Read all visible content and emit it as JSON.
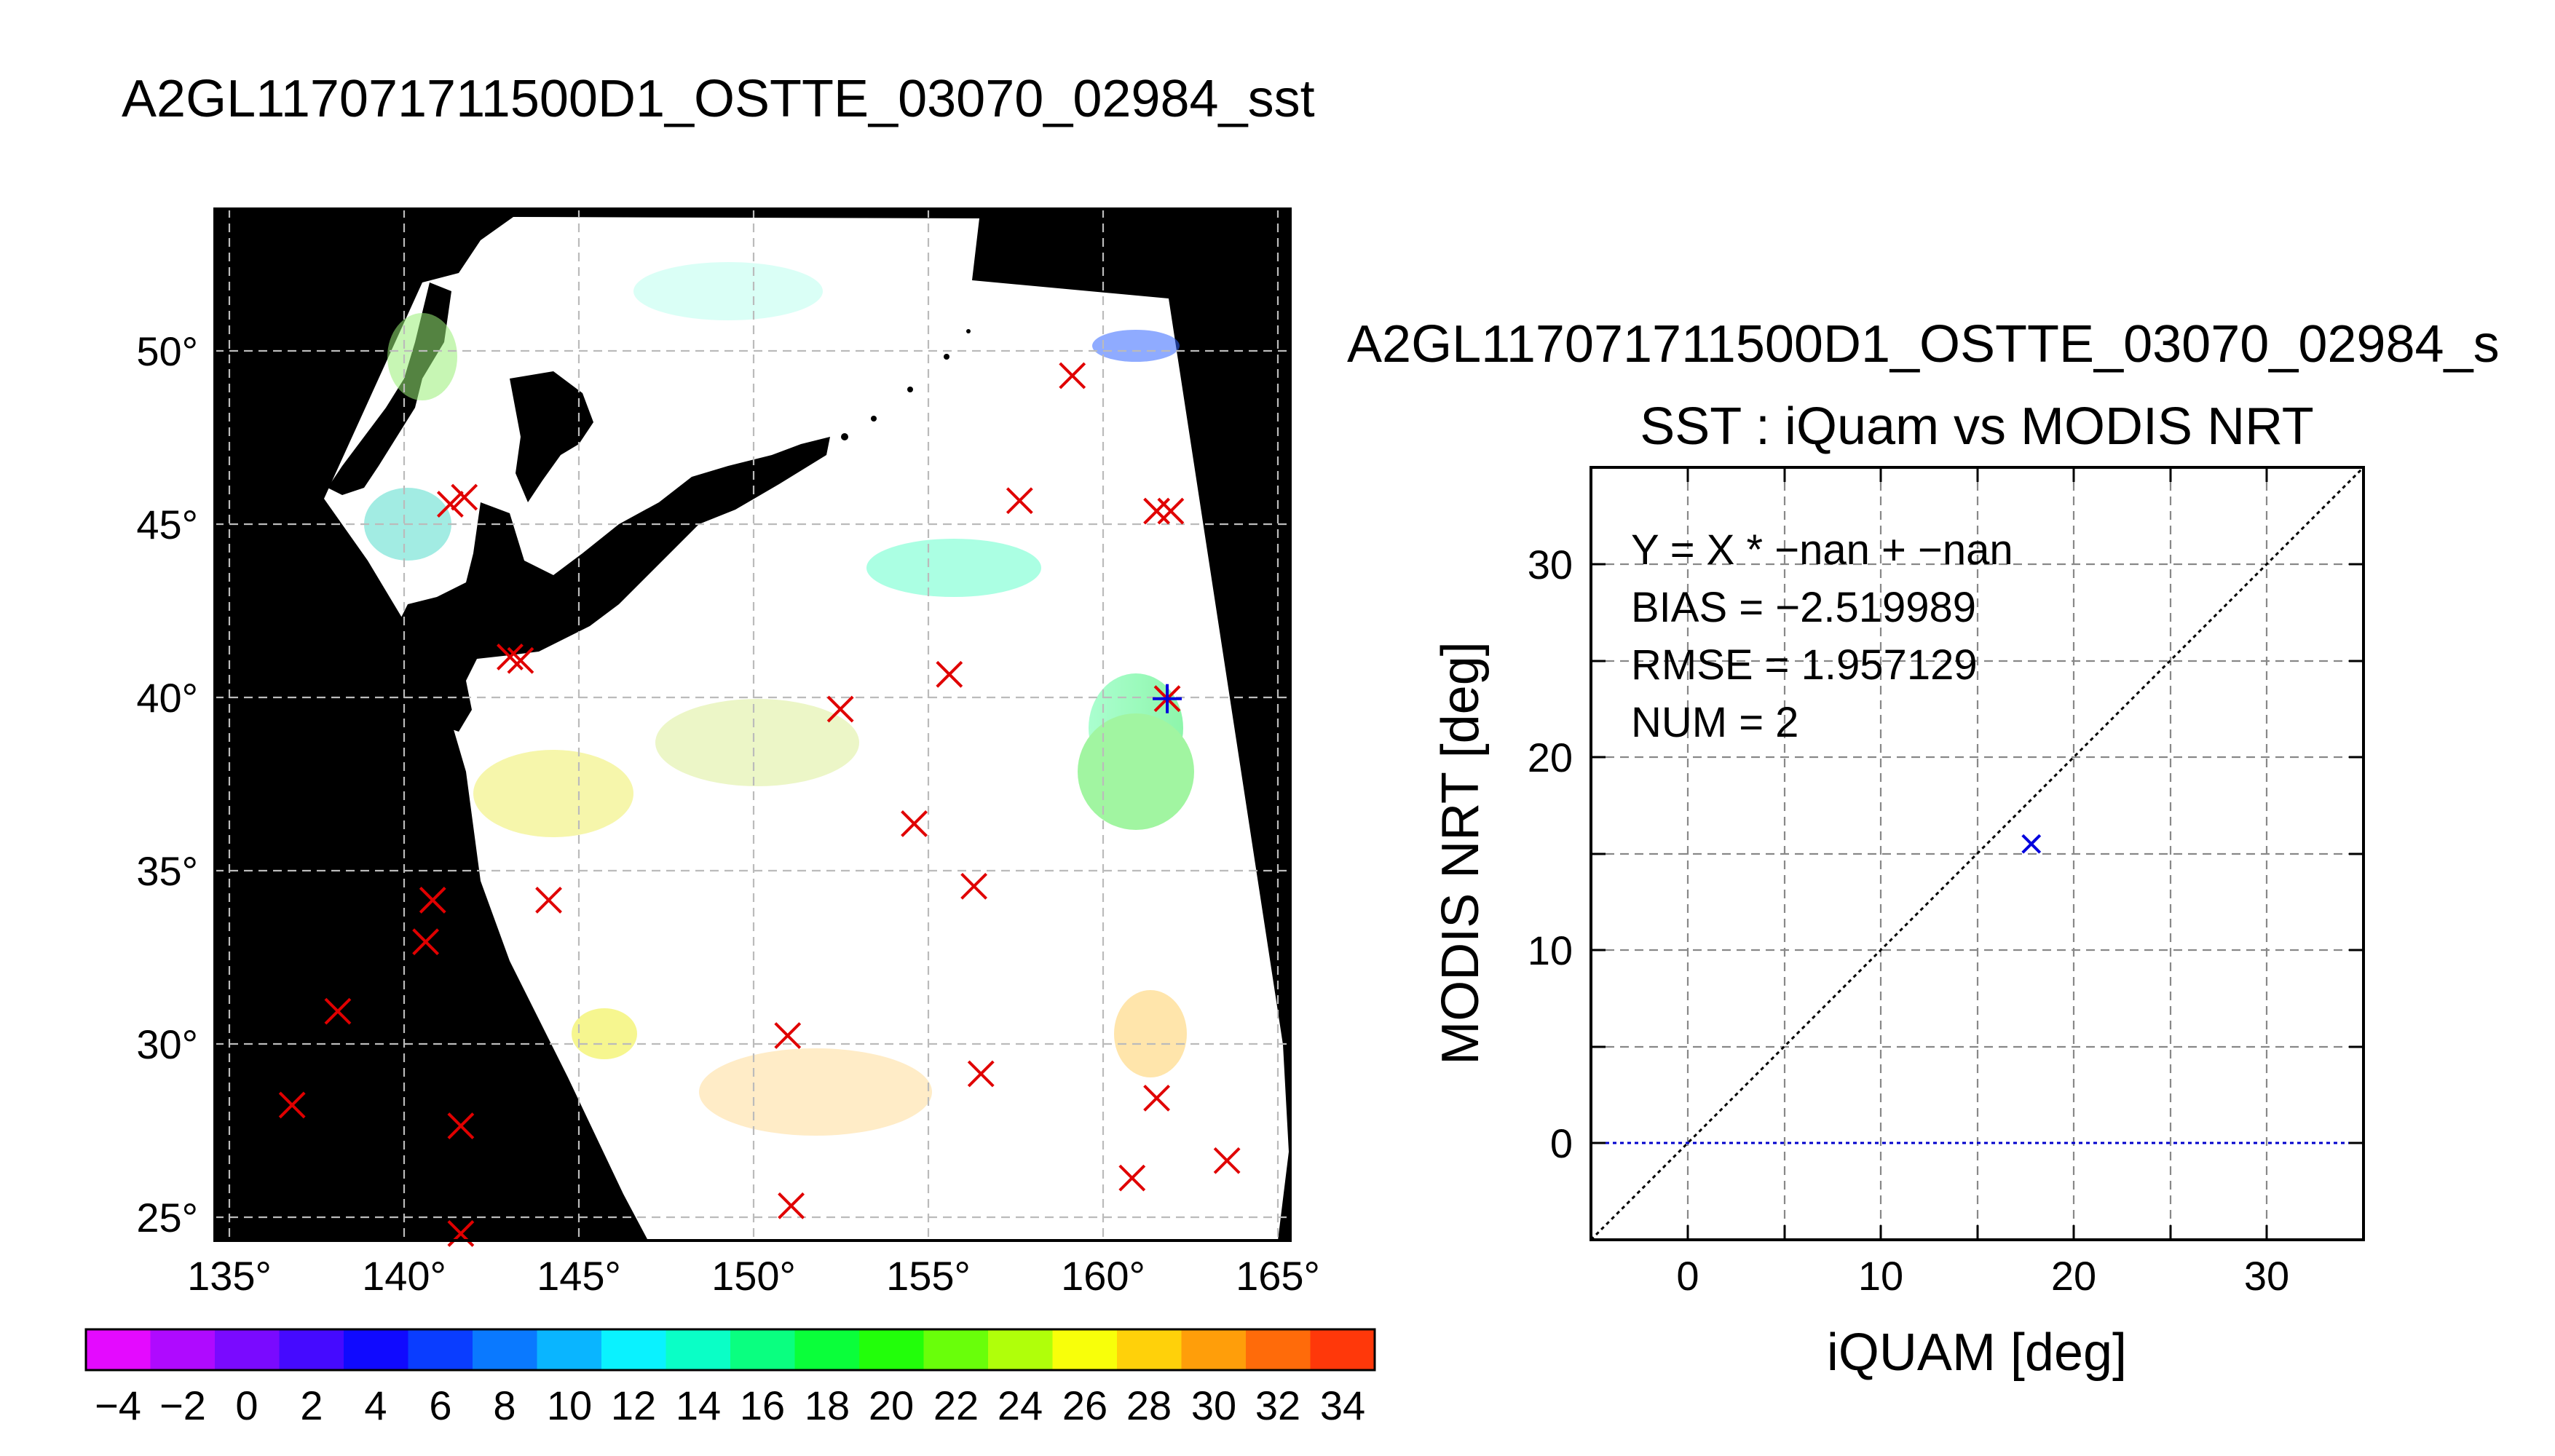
{
  "map_title": "A2GL117071711500D1_OSTTE_03070_02984_sst",
  "scatter_header": "A2GL117071711500D1_OSTTE_03070_02984_s",
  "colors": {
    "background": "#ffffff",
    "land_nodata": "#000000",
    "marker_red": "#e00000",
    "marker_blue": "#0000dd",
    "zero_line": "#0000cc"
  },
  "chart_data": [
    {
      "type": "scatter",
      "kind": "map",
      "title": "A2GL117071711500D1_OSTTE_03070_02984_sst",
      "x_tick_labels": [
        "135°",
        "140°",
        "145°",
        "150°",
        "155°",
        "160°",
        "165°"
      ],
      "y_tick_labels": [
        "50°",
        "45°",
        "40°",
        "35°",
        "30°",
        "25°"
      ],
      "xlim": [
        134.5,
        165.1
      ],
      "ylim": [
        24.3,
        54.0
      ],
      "grid": true,
      "points": [
        {
          "x": 141.2,
          "y": 45.5
        },
        {
          "x": 141.6,
          "y": 45.7
        },
        {
          "x": 142.9,
          "y": 41.1
        },
        {
          "x": 143.2,
          "y": 41.0
        },
        {
          "x": 140.7,
          "y": 34.1
        },
        {
          "x": 140.5,
          "y": 32.9
        },
        {
          "x": 138.0,
          "y": 30.9
        },
        {
          "x": 136.7,
          "y": 28.2
        },
        {
          "x": 141.5,
          "y": 27.6
        },
        {
          "x": 141.5,
          "y": 24.5
        },
        {
          "x": 144.0,
          "y": 34.1
        },
        {
          "x": 150.8,
          "y": 30.2
        },
        {
          "x": 150.9,
          "y": 25.3
        },
        {
          "x": 152.3,
          "y": 39.6
        },
        {
          "x": 154.4,
          "y": 36.3
        },
        {
          "x": 155.4,
          "y": 40.6
        },
        {
          "x": 156.1,
          "y": 34.5
        },
        {
          "x": 156.3,
          "y": 29.1
        },
        {
          "x": 157.4,
          "y": 45.6
        },
        {
          "x": 158.9,
          "y": 49.2
        },
        {
          "x": 161.3,
          "y": 45.3
        },
        {
          "x": 161.7,
          "y": 45.3
        },
        {
          "x": 161.3,
          "y": 28.4
        },
        {
          "x": 160.6,
          "y": 26.1
        },
        {
          "x": 163.3,
          "y": 26.6
        }
      ],
      "highlight_point": {
        "x": 161.6,
        "y": 39.9
      },
      "colorbar": {
        "range": [
          -5,
          35
        ],
        "step": 2,
        "tick_labels": [
          "−4",
          "−2",
          "0",
          "2",
          "4",
          "6",
          "8",
          "10",
          "12",
          "14",
          "16",
          "18",
          "20",
          "22",
          "24",
          "26",
          "28",
          "30",
          "32",
          "34"
        ]
      }
    },
    {
      "type": "scatter",
      "kind": "comparison",
      "title": "SST : iQuam vs MODIS NRT",
      "xlabel": "iQUAM [deg]",
      "ylabel": "MODIS NRT [deg]",
      "xlim": [
        -5,
        35
      ],
      "ylim": [
        -5,
        35
      ],
      "x_tick_labels": [
        "0",
        "10",
        "20",
        "30"
      ],
      "y_tick_labels": [
        "0",
        "10",
        "20",
        "30"
      ],
      "grid": true,
      "annotations": [
        "Y = X * −nan + −nan",
        "BIAS = −2.519989",
        "RMSE = 1.957129",
        "NUM = 2"
      ],
      "points": [
        {
          "x": 17.8,
          "y": 15.5
        }
      ],
      "reference_lines": [
        {
          "name": "1:1",
          "style": "dotted",
          "color": "#000000"
        },
        {
          "name": "y=0",
          "style": "dotted",
          "color": "#0000cc"
        }
      ]
    }
  ]
}
